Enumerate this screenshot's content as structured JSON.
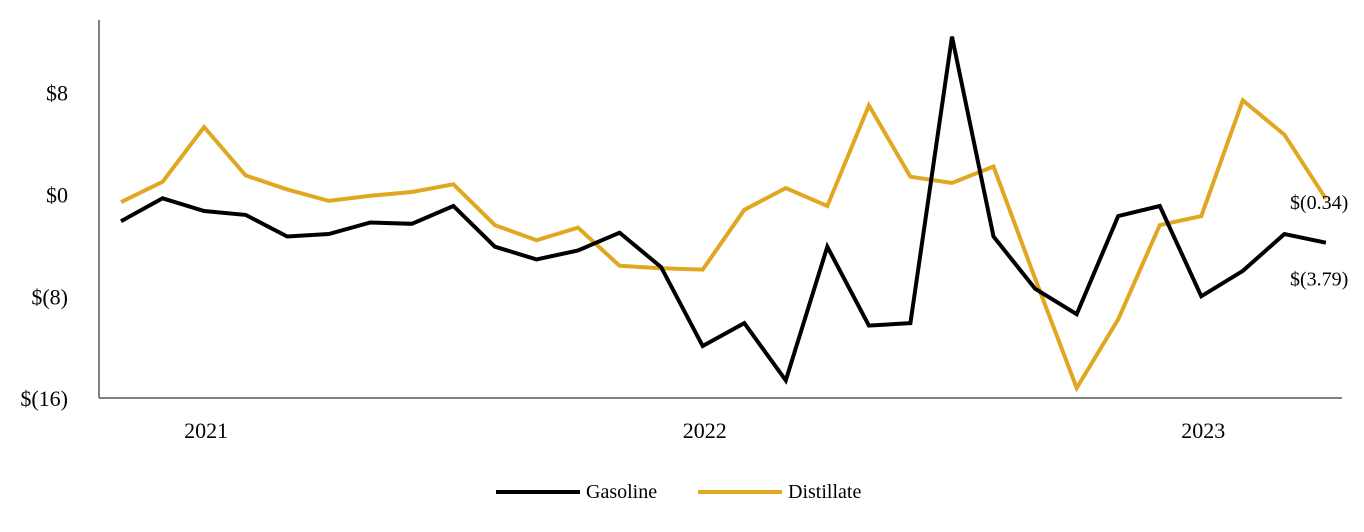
{
  "chart_data": {
    "type": "line",
    "title": "",
    "xlabel": "",
    "ylabel": "",
    "ylim": [
      -16,
      14
    ],
    "y_ticks": [
      {
        "value": 8,
        "label": "$8"
      },
      {
        "value": 0,
        "label": "$0"
      },
      {
        "value": -8,
        "label": "$(8)"
      },
      {
        "value": -16,
        "label": "$(16)"
      }
    ],
    "x_ticks": [
      {
        "index": 2,
        "label": "2021"
      },
      {
        "index": 14,
        "label": "2022"
      },
      {
        "index": 26,
        "label": "2023"
      }
    ],
    "grid": false,
    "legend": "bottom",
    "series": [
      {
        "name": "Gasoline",
        "color": "#000000",
        "values": [
          -2.1,
          -0.3,
          -1.3,
          -1.6,
          -3.3,
          -3.1,
          -2.2,
          -2.3,
          -0.9,
          -4.1,
          -5.1,
          -4.4,
          -3.0,
          -5.7,
          -11.9,
          -10.1,
          -14.6,
          -4.1,
          -10.3,
          -10.1,
          12.4,
          -3.3,
          -7.4,
          -9.4,
          -1.7,
          -0.9,
          -8.0,
          -6.0,
          -3.1,
          -3.79
        ],
        "end_label": "$(3.79)"
      },
      {
        "name": "Distillate",
        "color": "#E0A820",
        "values": [
          -0.6,
          1.0,
          5.3,
          1.5,
          0.4,
          -0.5,
          -0.1,
          0.2,
          0.8,
          -2.4,
          -3.6,
          -2.6,
          -5.6,
          -5.8,
          -5.9,
          -1.2,
          0.5,
          -0.9,
          7.0,
          1.4,
          0.9,
          2.2,
          -6.6,
          -15.2,
          -9.8,
          -2.4,
          -1.7,
          7.4,
          4.7,
          -0.34
        ],
        "end_label": "$(0.34)"
      }
    ]
  }
}
